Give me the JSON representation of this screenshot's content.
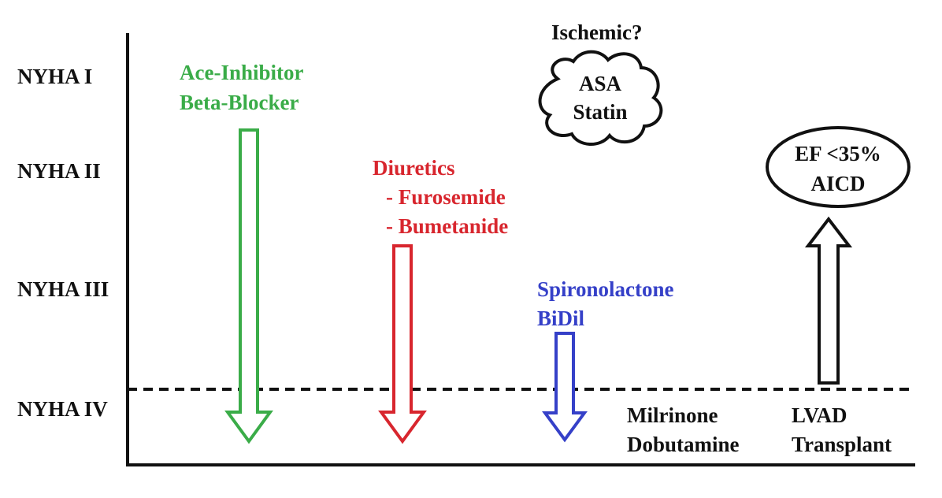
{
  "levels": [
    "NYHA I",
    "NYHA II",
    "NYHA III",
    "NYHA IV"
  ],
  "colors": {
    "green": "#3aac48",
    "red": "#d8262e",
    "blue": "#3540c8",
    "black": "#111111"
  },
  "therapies": {
    "ace_beta": {
      "line1": "Ace-Inhibitor",
      "line2": "Beta-Blocker"
    },
    "diuretics": {
      "line1": "Diuretics",
      "line2": "- Furosemide",
      "line3": "- Bumetanide"
    },
    "spiro": {
      "line1": "Spironolactone",
      "line2": "BiDil"
    },
    "ischemic": {
      "question": "Ischemic?",
      "line1": "ASA",
      "line2": "Statin"
    },
    "ef": {
      "line1": "EF <35%",
      "line2": "AICD"
    },
    "inotropes": {
      "line1": "Milrinone",
      "line2": "Dobutamine"
    },
    "advanced": {
      "line1": "LVAD",
      "line2": "Transplant"
    }
  }
}
